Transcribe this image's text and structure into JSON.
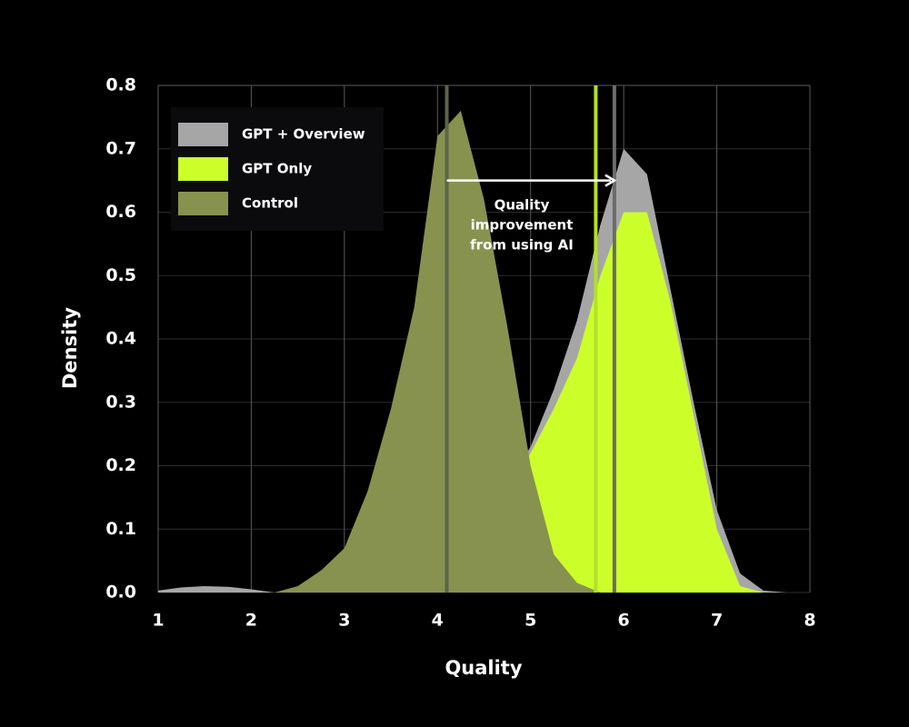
{
  "chart_data": {
    "type": "area",
    "x_label": "Quality",
    "y_label": "Density",
    "x": [
      1,
      1.25,
      1.5,
      1.75,
      2,
      2.25,
      2.5,
      2.75,
      3,
      3.25,
      3.5,
      3.75,
      4,
      4.25,
      4.5,
      4.75,
      5,
      5.25,
      5.5,
      5.75,
      6,
      6.25,
      6.5,
      6.75,
      7,
      7.25,
      7.5,
      7.75,
      8
    ],
    "series": [
      {
        "name": "GPT + Overview",
        "color": "#a6a6a6",
        "values": [
          0.003,
          0.008,
          0.01,
          0.009,
          0.005,
          0,
          0,
          0,
          0,
          0.005,
          0.03,
          0.06,
          0.08,
          0.09,
          0.12,
          0.17,
          0.23,
          0.32,
          0.43,
          0.58,
          0.7,
          0.66,
          0.48,
          0.3,
          0.13,
          0.03,
          0.003,
          0,
          0
        ]
      },
      {
        "name": "GPT Only",
        "color": "#ccff2a",
        "values": [
          0,
          0,
          0,
          0,
          0,
          0,
          0,
          0,
          0,
          0.005,
          0.03,
          0.06,
          0.08,
          0.085,
          0.11,
          0.16,
          0.22,
          0.29,
          0.37,
          0.5,
          0.6,
          0.6,
          0.46,
          0.28,
          0.1,
          0.01,
          0,
          0,
          0
        ]
      },
      {
        "name": "Control",
        "color": "#87924f",
        "values": [
          0,
          0,
          0,
          0,
          0,
          0,
          0.01,
          0.035,
          0.07,
          0.16,
          0.29,
          0.45,
          0.72,
          0.76,
          0.62,
          0.42,
          0.2,
          0.06,
          0.015,
          0,
          0,
          0,
          0,
          0,
          0,
          0,
          0,
          0,
          0
        ]
      }
    ],
    "mean_lines": [
      {
        "x": 4.1,
        "color": "#5c6448"
      },
      {
        "x": 5.7,
        "color": "#b3e02a"
      },
      {
        "x": 5.9,
        "color": "#6b6b6b"
      }
    ],
    "arrow": {
      "from": 4.1,
      "to": 5.9,
      "y": 0.65,
      "color": "#ffffff"
    },
    "annotation": [
      "Quality",
      "improvement",
      "from using AI"
    ],
    "xlim": [
      1,
      8
    ],
    "ylim": [
      0,
      0.8
    ],
    "xticks": [
      1,
      2,
      3,
      4,
      5,
      6,
      7,
      8
    ],
    "yticks": [
      {
        "value": 0,
        "label": "0.0"
      },
      0.1,
      0.2,
      0.3,
      0.4,
      0.5,
      0.6,
      0.7,
      0.8
    ],
    "grid": true,
    "legend": "upper-left"
  }
}
